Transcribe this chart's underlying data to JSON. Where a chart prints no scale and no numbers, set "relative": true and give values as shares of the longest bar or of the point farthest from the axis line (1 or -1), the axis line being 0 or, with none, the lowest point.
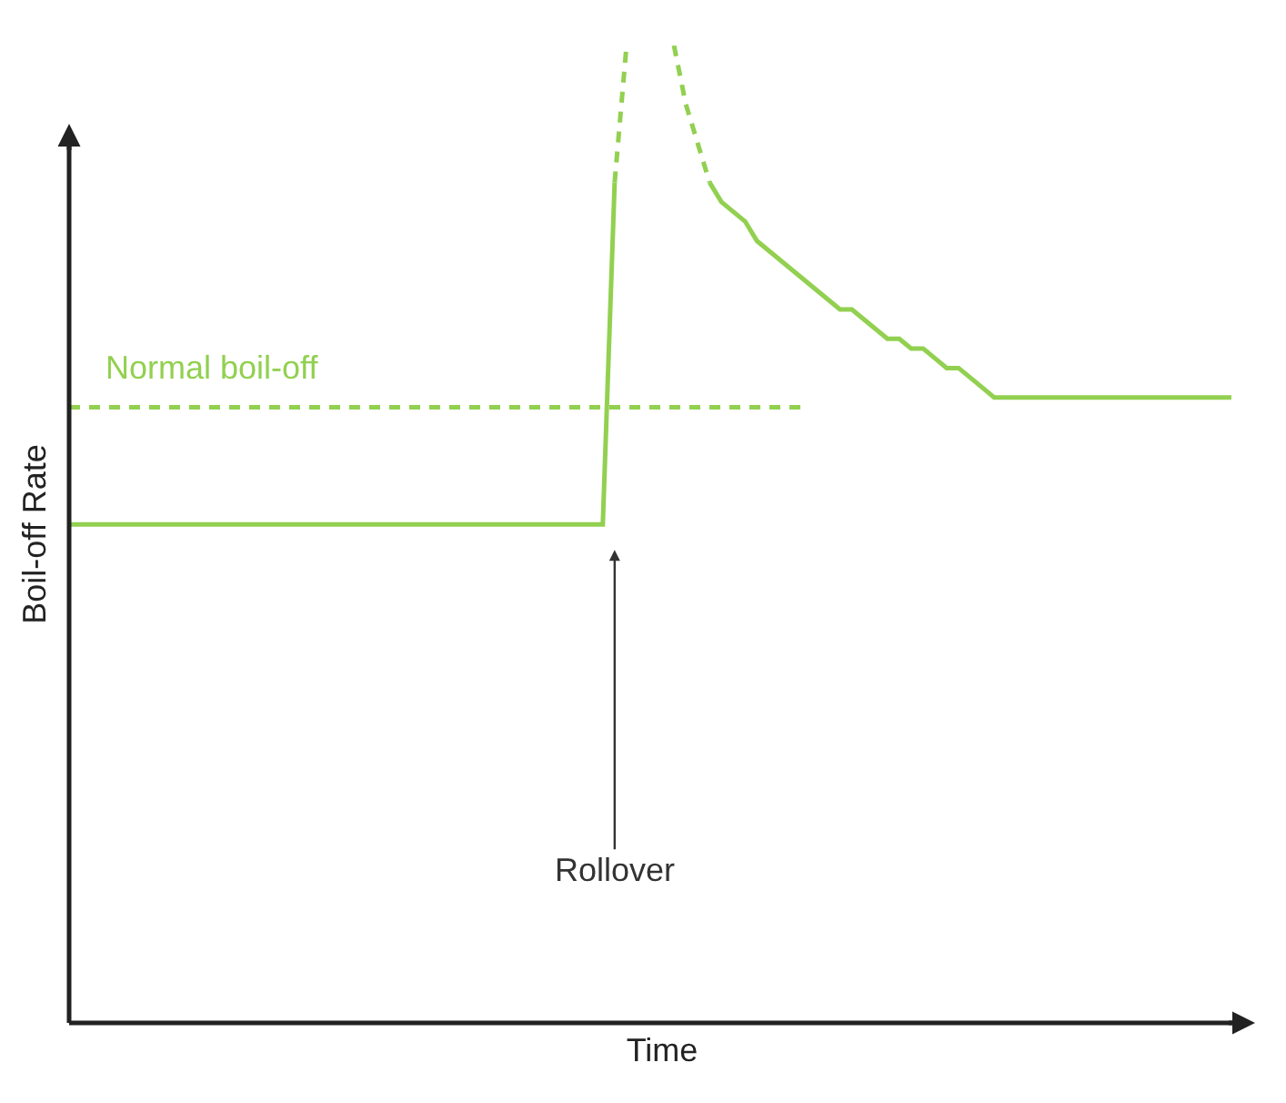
{
  "chart_data": {
    "type": "line",
    "relative": true,
    "xlabel": "Time",
    "ylabel": "Boil-off Rate",
    "legend": false,
    "grid": false,
    "categories": [
      null,
      null,
      null,
      null,
      null,
      null,
      null,
      null,
      null,
      null,
      null,
      null,
      null,
      null,
      null,
      null,
      null,
      null,
      null,
      null,
      null,
      null,
      null,
      null,
      null,
      null,
      null,
      null,
      null,
      null,
      null,
      null,
      null,
      null,
      null,
      null,
      null,
      null,
      null,
      null,
      null,
      null,
      null,
      null,
      null,
      null,
      null,
      null,
      null,
      null,
      null,
      null,
      null,
      null,
      null,
      null,
      null,
      null,
      null,
      null,
      null,
      null,
      null,
      null,
      null,
      null,
      null,
      null,
      null,
      null,
      null,
      null,
      null,
      null,
      null,
      null,
      null,
      null,
      null,
      null,
      null,
      null,
      null,
      null,
      null,
      null,
      null,
      null,
      null,
      null,
      null,
      null,
      null,
      null,
      null,
      null,
      null,
      null,
      null,
      null,
      null
    ],
    "series": [
      {
        "color": "#92d050",
        "line_style": "solid",
        "values": [
          0.51,
          0.51,
          0.51,
          0.51,
          0.51,
          0.51,
          0.51,
          0.51,
          0.51,
          0.51,
          0.51,
          0.51,
          0.51,
          0.51,
          0.51,
          0.51,
          0.51,
          0.51,
          0.51,
          0.51,
          0.51,
          0.51,
          0.51,
          0.51,
          0.51,
          0.51,
          0.51,
          0.51,
          0.51,
          0.51,
          0.51,
          0.51,
          0.51,
          0.51,
          0.51,
          0.51,
          0.51,
          0.51,
          0.51,
          0.51,
          0.51,
          0.51,
          0.51,
          0.51,
          0.51,
          0.51,
          0.86,
          null,
          null,
          null,
          null,
          null,
          null,
          null,
          null,
          null,
          null,
          null,
          null,
          null,
          null,
          null,
          null,
          null,
          null,
          null,
          null,
          null,
          null,
          null,
          null,
          null,
          null,
          null,
          null,
          null,
          null,
          null,
          null,
          null,
          null,
          null,
          null,
          null,
          null,
          null,
          null,
          null,
          null,
          null,
          null,
          null,
          null,
          null,
          null,
          null,
          null,
          null,
          null,
          null,
          null
        ]
      },
      {
        "color": "#92d050",
        "line_style": "dashed",
        "values": [
          null,
          null,
          null,
          null,
          null,
          null,
          null,
          null,
          null,
          null,
          null,
          null,
          null,
          null,
          null,
          null,
          null,
          null,
          null,
          null,
          null,
          null,
          null,
          null,
          null,
          null,
          null,
          null,
          null,
          null,
          null,
          null,
          null,
          null,
          null,
          null,
          null,
          null,
          null,
          null,
          null,
          null,
          null,
          null,
          null,
          null,
          0.86,
          1,
          null,
          null,
          null,
          null,
          null,
          null,
          null,
          null,
          null,
          null,
          null,
          null,
          null,
          null,
          null,
          null,
          null,
          null,
          null,
          null,
          null,
          null,
          null,
          null,
          null,
          null,
          null,
          null,
          null,
          null,
          null,
          null,
          null,
          null,
          null,
          null,
          null,
          null,
          null,
          null,
          null,
          null,
          null,
          null,
          null,
          null,
          null,
          null,
          null,
          null,
          null,
          null,
          null
        ]
      },
      {
        "name": "Normal boil-off",
        "color": "#92d050",
        "line_style": "dashed",
        "values": [
          0.63,
          0.63,
          0.63,
          0.63,
          0.63,
          0.63,
          0.63,
          0.63,
          0.63,
          0.63,
          0.63,
          0.63,
          0.63,
          0.63,
          0.63,
          0.63,
          0.63,
          0.63,
          0.63,
          0.63,
          0.63,
          0.63,
          0.63,
          0.63,
          0.63,
          0.63,
          0.63,
          0.63,
          0.63,
          0.63,
          0.63,
          0.63,
          0.63,
          0.63,
          0.63,
          0.63,
          0.63,
          0.63,
          0.63,
          0.63,
          0.63,
          0.63,
          0.63,
          0.63,
          0.63,
          0.63,
          0.63,
          0.63,
          0.63,
          0.63,
          0.63,
          0.63,
          0.63,
          0.63,
          0.63,
          0.63,
          0.63,
          0.63,
          0.63,
          0.63,
          0.63,
          0.63,
          0.63,
          null,
          null,
          null,
          null,
          null,
          null,
          null,
          null,
          null,
          null,
          null,
          null,
          null,
          null,
          null,
          null,
          null,
          null,
          null,
          null,
          null,
          null,
          null,
          null,
          null,
          null,
          null,
          null,
          null,
          null,
          null,
          null,
          null,
          null,
          null,
          null,
          null,
          null
        ]
      },
      {
        "color": "#92d050",
        "line_style": "dashed",
        "values": [
          null,
          null,
          null,
          null,
          null,
          null,
          null,
          null,
          null,
          null,
          null,
          null,
          null,
          null,
          null,
          null,
          null,
          null,
          null,
          null,
          null,
          null,
          null,
          null,
          null,
          null,
          null,
          null,
          null,
          null,
          null,
          null,
          null,
          null,
          null,
          null,
          null,
          null,
          null,
          null,
          null,
          null,
          null,
          null,
          null,
          null,
          null,
          null,
          null,
          null,
          null,
          1,
          0.94,
          0.9,
          0.86,
          null,
          null,
          null,
          null,
          null,
          null,
          null,
          null,
          null,
          null,
          null,
          null,
          null,
          null,
          null,
          null,
          null,
          null,
          null,
          null,
          null,
          null,
          null,
          null,
          null,
          null,
          null,
          null,
          null,
          null,
          null,
          null,
          null,
          null,
          null,
          null,
          null,
          null,
          null,
          null,
          null,
          null,
          null,
          null,
          null,
          null
        ]
      },
      {
        "color": "#92d050",
        "line_style": "solid",
        "values": [
          null,
          null,
          null,
          null,
          null,
          null,
          null,
          null,
          null,
          null,
          null,
          null,
          null,
          null,
          null,
          null,
          null,
          null,
          null,
          null,
          null,
          null,
          null,
          null,
          null,
          null,
          null,
          null,
          null,
          null,
          null,
          null,
          null,
          null,
          null,
          null,
          null,
          null,
          null,
          null,
          null,
          null,
          null,
          null,
          null,
          null,
          null,
          null,
          null,
          null,
          null,
          null,
          null,
          null,
          0.86,
          0.84,
          0.83,
          0.82,
          0.8,
          0.79,
          0.78,
          0.77,
          0.76,
          0.75,
          0.74,
          0.73,
          0.73,
          0.72,
          0.71,
          0.7,
          0.7,
          0.69,
          0.69,
          0.68,
          0.67,
          0.67,
          0.66,
          0.65,
          0.64,
          0.64,
          0.64,
          0.64,
          0.64,
          0.64,
          0.64,
          0.64,
          0.64,
          0.64,
          0.64,
          0.64,
          0.64,
          0.64,
          0.64,
          0.64,
          0.64,
          0.64,
          0.64,
          0.64,
          0.64,
          null,
          null
        ]
      }
    ],
    "annotations": [
      "Rollover"
    ]
  }
}
